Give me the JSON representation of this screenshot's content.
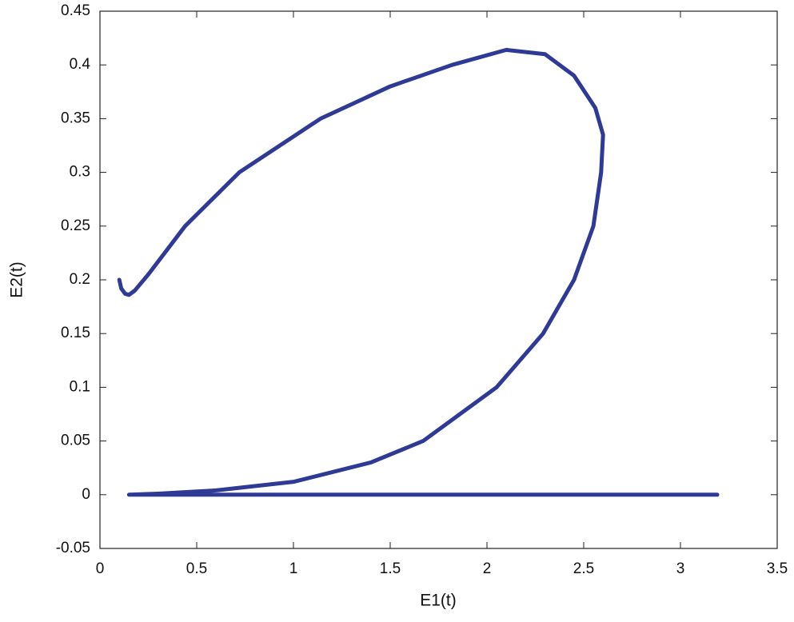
{
  "chart_data": {
    "type": "line",
    "x_label": "E1(t)",
    "y_label": "E2(t)",
    "series": [
      {
        "color": "#2f3a97",
        "x": [
          0.1,
          0.11,
          0.13,
          0.15,
          0.18,
          0.25,
          0.44,
          0.72,
          1.14,
          1.5,
          1.82,
          2.1,
          2.3,
          2.45,
          2.56,
          2.6,
          2.59,
          2.55,
          2.45,
          2.29,
          2.05,
          1.67,
          1.4,
          1.0,
          0.6,
          0.3,
          0.15,
          3.19
        ],
        "values": [
          0.2,
          0.192,
          0.187,
          0.186,
          0.19,
          0.205,
          0.25,
          0.3,
          0.35,
          0.38,
          0.4,
          0.414,
          0.41,
          0.39,
          0.36,
          0.335,
          0.3,
          0.25,
          0.2,
          0.15,
          0.1,
          0.05,
          0.03,
          0.012,
          0.004,
          0.001,
          0.0,
          0.0
        ]
      }
    ],
    "xlim": [
      0,
      3.5
    ],
    "xticks": [
      0,
      0.5,
      1,
      1.5,
      2,
      2.5,
      3,
      3.5
    ],
    "ylim": [
      -0.05,
      0.45
    ],
    "yticks": [
      -0.05,
      0,
      0.05,
      0.1,
      0.15,
      0.2,
      0.25,
      0.3,
      0.35,
      0.4,
      0.45
    ],
    "grid": false
  }
}
